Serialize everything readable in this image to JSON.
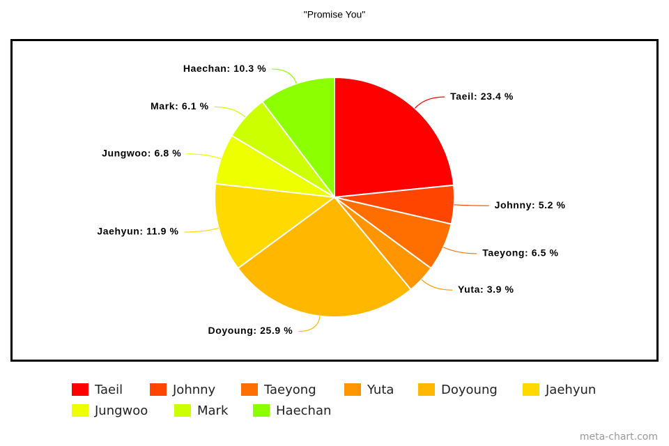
{
  "chart_data": {
    "type": "pie",
    "title": "\"Promise You\"",
    "categories": [
      "Taeil",
      "Johnny",
      "Taeyong",
      "Yuta",
      "Doyoung",
      "Jaehyun",
      "Jungwoo",
      "Mark",
      "Haechan"
    ],
    "values": [
      23.4,
      5.2,
      6.5,
      3.9,
      25.9,
      11.9,
      6.8,
      6.1,
      10.3
    ],
    "value_labels": [
      "Taeil: 23.4 %",
      "Johnny: 5.2 %",
      "Taeyong: 6.5 %",
      "Yuta: 3.9 %",
      "Doyoung: 25.9 %",
      "Jaehyun: 11.9 %",
      "Jungwoo: 6.8 %",
      "Mark: 6.1 %",
      "Haechan: 10.3 %"
    ],
    "colors": [
      "#ff0000",
      "#ff4500",
      "#ff6f00",
      "#ff9500",
      "#ffb700",
      "#ffd900",
      "#eeff00",
      "#ccff00",
      "#8cff00"
    ],
    "legend": "bottom",
    "watermark": "meta-chart.com"
  }
}
